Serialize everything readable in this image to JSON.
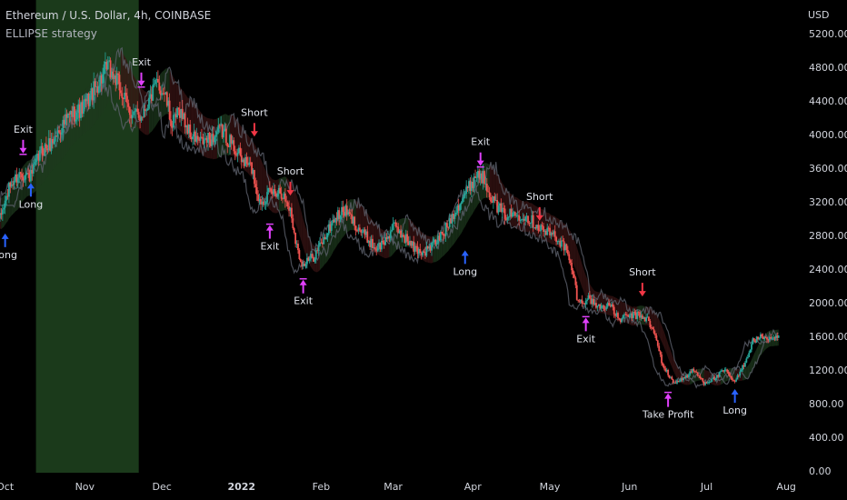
{
  "header": {
    "title": "Ethereum / U.S. Dollar, 4h, COINBASE",
    "strategy": "ELLIPSE strategy"
  },
  "colors": {
    "background": "#000000",
    "up": "#26a69a",
    "down": "#ef5350",
    "long_arrow": "#2962ff",
    "short_arrow": "#f23645",
    "exit_arrow": "#e040fb",
    "band_green": "#1e3a1e",
    "band_red": "#3a1414",
    "grey_line": "#5d606b",
    "highlight": "#1b3a1b"
  },
  "chart_data": {
    "type": "candlestick",
    "symbol": "Ethereum / U.S. Dollar",
    "timeframe": "4h",
    "exchange": "COINBASE",
    "currency": "USD",
    "y_ticks": [
      "0.00",
      "400.00",
      "800.00",
      "1200.00",
      "1600.00",
      "2000.00",
      "2400.00",
      "2800.00",
      "3200.00",
      "3600.00",
      "4000.00",
      "4400.00",
      "4800.00",
      "5200.00"
    ],
    "y_tick_values": [
      0,
      400,
      800,
      1200,
      1600,
      2000,
      2400,
      2800,
      3200,
      3600,
      4000,
      4400,
      4800,
      5200
    ],
    "ylim": [
      -20,
      5600
    ],
    "x_ticks": [
      {
        "label": "Oct",
        "date": "2021-10-01",
        "bold": false
      },
      {
        "label": "Nov",
        "date": "2021-11-01",
        "bold": false
      },
      {
        "label": "Dec",
        "date": "2021-12-01",
        "bold": false
      },
      {
        "label": "2022",
        "date": "2022-01-01",
        "bold": true
      },
      {
        "label": "Feb",
        "date": "2022-02-01",
        "bold": false
      },
      {
        "label": "Mar",
        "date": "2022-03-01",
        "bold": false
      },
      {
        "label": "Apr",
        "date": "2022-04-01",
        "bold": false
      },
      {
        "label": "May",
        "date": "2022-05-01",
        "bold": false
      },
      {
        "label": "Jun",
        "date": "2022-06-01",
        "bold": false
      },
      {
        "label": "Jul",
        "date": "2022-07-01",
        "bold": false
      },
      {
        "label": "Aug",
        "date": "2022-08-01",
        "bold": false
      }
    ],
    "xlim": [
      "2021-09-29",
      "2022-08-02"
    ],
    "highlight_range": [
      "2021-10-13",
      "2021-11-22"
    ],
    "price_path": [
      [
        "2021-09-29",
        3000
      ],
      [
        "2021-10-03",
        3400
      ],
      [
        "2021-10-07",
        3550
      ],
      [
        "2021-10-11",
        3500
      ],
      [
        "2021-10-15",
        3800
      ],
      [
        "2021-10-19",
        3900
      ],
      [
        "2021-10-23",
        4100
      ],
      [
        "2021-10-27",
        4250
      ],
      [
        "2021-10-31",
        4300
      ],
      [
        "2021-11-04",
        4500
      ],
      [
        "2021-11-08",
        4700
      ],
      [
        "2021-11-10",
        4800
      ],
      [
        "2021-11-14",
        4600
      ],
      [
        "2021-11-18",
        4300
      ],
      [
        "2021-11-22",
        4200
      ],
      [
        "2021-11-26",
        4400
      ],
      [
        "2021-11-29",
        4600
      ],
      [
        "2021-12-02",
        4500
      ],
      [
        "2021-12-05",
        4100
      ],
      [
        "2021-12-08",
        4300
      ],
      [
        "2021-12-12",
        4000
      ],
      [
        "2021-12-16",
        3900
      ],
      [
        "2021-12-20",
        3950
      ],
      [
        "2021-12-24",
        4050
      ],
      [
        "2021-12-28",
        3900
      ],
      [
        "2022-01-01",
        3700
      ],
      [
        "2022-01-05",
        3600
      ],
      [
        "2022-01-08",
        3200
      ],
      [
        "2022-01-12",
        3300
      ],
      [
        "2022-01-16",
        3350
      ],
      [
        "2022-01-20",
        3100
      ],
      [
        "2022-01-23",
        2600
      ],
      [
        "2022-01-25",
        2450
      ],
      [
        "2022-01-29",
        2550
      ],
      [
        "2022-02-02",
        2750
      ],
      [
        "2022-02-06",
        3000
      ],
      [
        "2022-02-10",
        3100
      ],
      [
        "2022-02-14",
        2950
      ],
      [
        "2022-02-18",
        2800
      ],
      [
        "2022-02-22",
        2650
      ],
      [
        "2022-02-25",
        2700
      ],
      [
        "2022-03-01",
        2900
      ],
      [
        "2022-03-05",
        2800
      ],
      [
        "2022-03-09",
        2650
      ],
      [
        "2022-03-13",
        2600
      ],
      [
        "2022-03-17",
        2700
      ],
      [
        "2022-03-21",
        2850
      ],
      [
        "2022-03-25",
        3100
      ],
      [
        "2022-03-29",
        3300
      ],
      [
        "2022-04-03",
        3550
      ],
      [
        "2022-04-06",
        3450
      ],
      [
        "2022-04-09",
        3200
      ],
      [
        "2022-04-13",
        3050
      ],
      [
        "2022-04-17",
        3050
      ],
      [
        "2022-04-21",
        3050
      ],
      [
        "2022-04-25",
        2950
      ],
      [
        "2022-04-29",
        2850
      ],
      [
        "2022-05-03",
        2800
      ],
      [
        "2022-05-07",
        2650
      ],
      [
        "2022-05-10",
        2350
      ],
      [
        "2022-05-12",
        2000
      ],
      [
        "2022-05-16",
        2050
      ],
      [
        "2022-05-20",
        1950
      ],
      [
        "2022-05-24",
        1980
      ],
      [
        "2022-05-28",
        1800
      ],
      [
        "2022-06-01",
        1850
      ],
      [
        "2022-06-05",
        1850
      ],
      [
        "2022-06-08",
        1800
      ],
      [
        "2022-06-11",
        1600
      ],
      [
        "2022-06-14",
        1250
      ],
      [
        "2022-06-18",
        1050
      ],
      [
        "2022-06-22",
        1100
      ],
      [
        "2022-06-26",
        1200
      ],
      [
        "2022-06-30",
        1050
      ],
      [
        "2022-07-04",
        1100
      ],
      [
        "2022-07-08",
        1200
      ],
      [
        "2022-07-12",
        1050
      ],
      [
        "2022-07-16",
        1300
      ],
      [
        "2022-07-19",
        1550
      ],
      [
        "2022-07-23",
        1600
      ],
      [
        "2022-07-27",
        1550
      ],
      [
        "2022-07-29",
        1600
      ]
    ],
    "signals": [
      {
        "label": "Long",
        "date": "2021-10-01",
        "price": 2900,
        "kind": "long",
        "text_pos": "below"
      },
      {
        "label": "Exit",
        "date": "2021-10-08",
        "price": 3700,
        "kind": "exit-down",
        "text_pos": "above"
      },
      {
        "label": "Long",
        "date": "2021-10-11",
        "price": 3500,
        "kind": "long",
        "text_pos": "below"
      },
      {
        "label": "Exit",
        "date": "2021-11-23",
        "price": 4500,
        "kind": "exit-down",
        "text_pos": "above"
      },
      {
        "label": "Short",
        "date": "2022-01-06",
        "price": 3900,
        "kind": "short",
        "text_pos": "above"
      },
      {
        "label": "Exit",
        "date": "2022-01-12",
        "price": 3000,
        "kind": "exit-up",
        "text_pos": "below"
      },
      {
        "label": "Short",
        "date": "2022-01-20",
        "price": 3200,
        "kind": "short",
        "text_pos": "above"
      },
      {
        "label": "Exit",
        "date": "2022-01-25",
        "price": 2350,
        "kind": "exit-up",
        "text_pos": "below"
      },
      {
        "label": "Long",
        "date": "2022-03-29",
        "price": 2700,
        "kind": "long",
        "text_pos": "below"
      },
      {
        "label": "Exit",
        "date": "2022-04-04",
        "price": 3550,
        "kind": "exit-down",
        "text_pos": "above"
      },
      {
        "label": "Short",
        "date": "2022-04-27",
        "price": 2900,
        "kind": "short",
        "text_pos": "above"
      },
      {
        "label": "Exit",
        "date": "2022-05-15",
        "price": 1900,
        "kind": "exit-up",
        "text_pos": "below"
      },
      {
        "label": "Short",
        "date": "2022-06-06",
        "price": 2000,
        "kind": "short",
        "text_pos": "above"
      },
      {
        "label": "Take Profit",
        "date": "2022-06-16",
        "price": 1000,
        "kind": "exit-up",
        "text_pos": "below"
      },
      {
        "label": "Long",
        "date": "2022-07-12",
        "price": 1050,
        "kind": "long",
        "text_pos": "below"
      }
    ]
  }
}
